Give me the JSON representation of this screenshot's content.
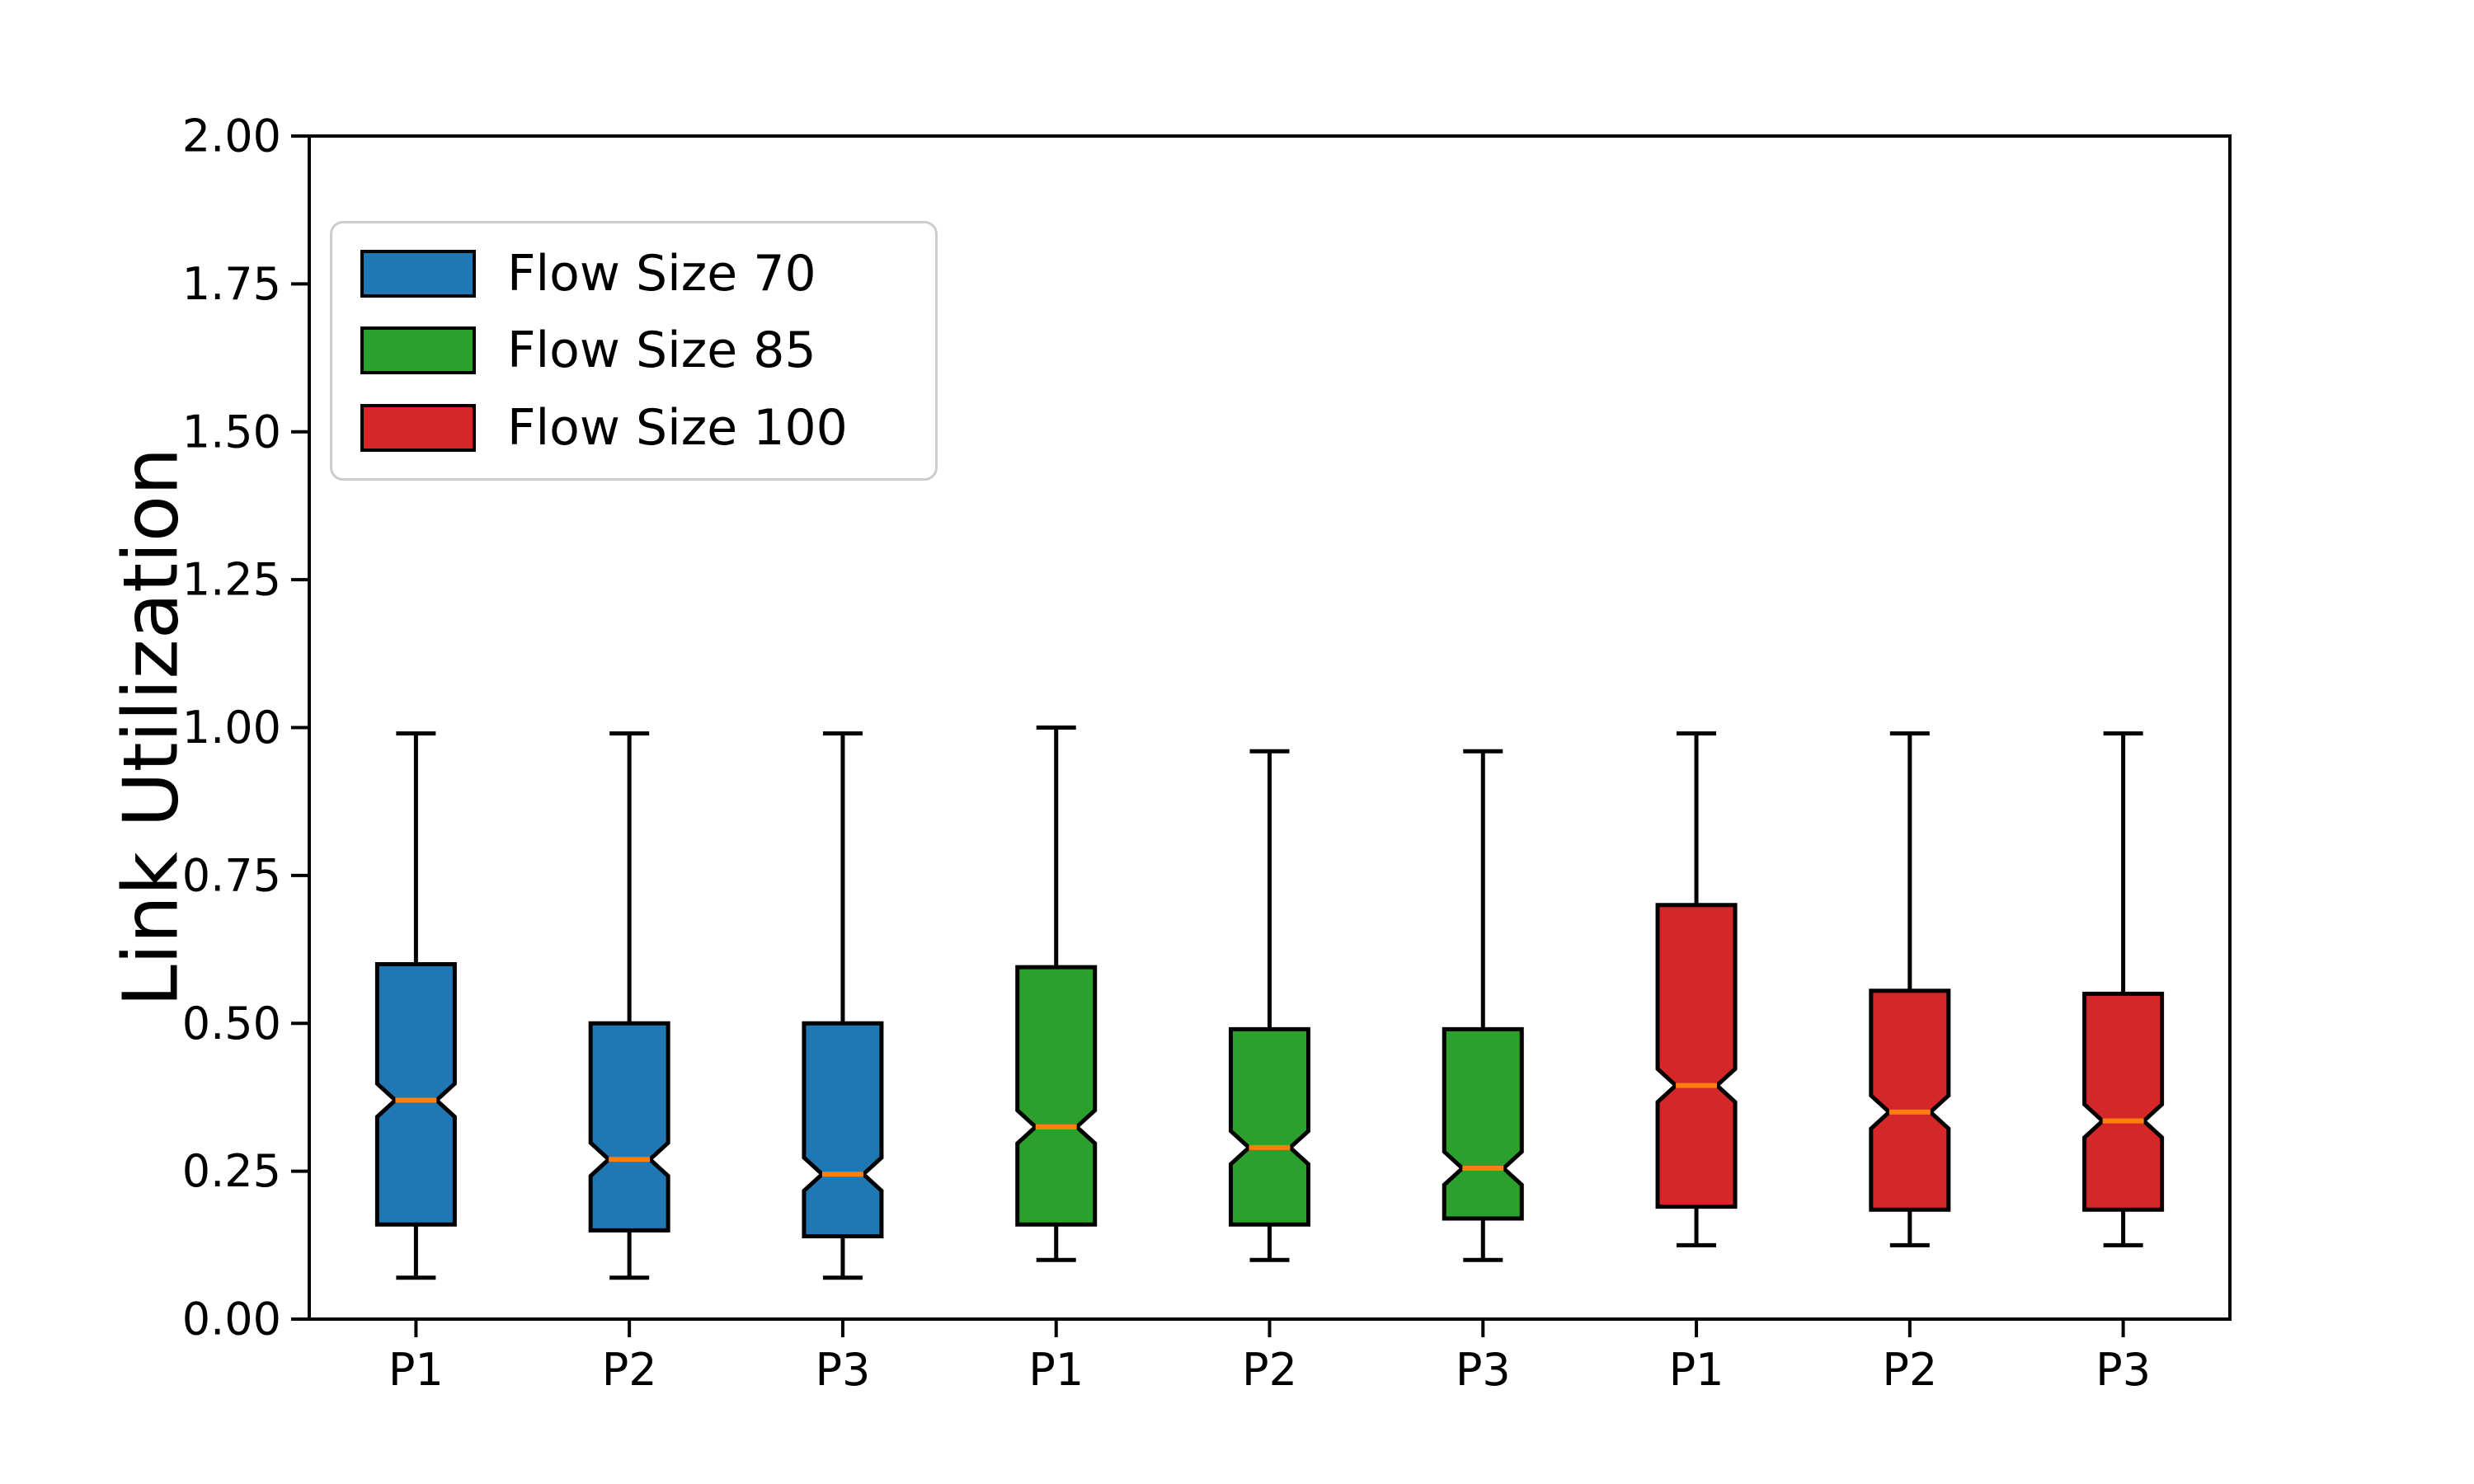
{
  "chart_data": {
    "type": "boxplot",
    "title": "",
    "xlabel": "",
    "ylabel": "Link Utilization",
    "ylim": [
      0,
      2
    ],
    "yticks": [
      "0.00",
      "0.25",
      "0.50",
      "0.75",
      "1.00",
      "1.25",
      "1.50",
      "1.75",
      "2.00"
    ],
    "ytick_values": [
      0,
      0.25,
      0.5,
      0.75,
      1.0,
      1.25,
      1.5,
      1.75,
      2.0
    ],
    "categories": [
      "P1",
      "P2",
      "P3",
      "P1",
      "P2",
      "P3",
      "P1",
      "P2",
      "P3"
    ],
    "grid": false,
    "frame": true,
    "notched": true,
    "notch_half": 0.028,
    "median_color": "#ff7f0e",
    "box_edge_color": "#000000",
    "legend_position": "upper left",
    "series": [
      {
        "name": "Flow Size 70",
        "color": "#1f77b4",
        "boxes": [
          {
            "label": "P1",
            "whislo": 0.07,
            "q1": 0.16,
            "med": 0.37,
            "q3": 0.6,
            "whishi": 0.99
          },
          {
            "label": "P2",
            "whislo": 0.07,
            "q1": 0.15,
            "med": 0.27,
            "q3": 0.5,
            "whishi": 0.99
          },
          {
            "label": "P3",
            "whislo": 0.07,
            "q1": 0.14,
            "med": 0.245,
            "q3": 0.5,
            "whishi": 0.99
          }
        ]
      },
      {
        "name": "Flow Size 85",
        "color": "#2ca02c",
        "boxes": [
          {
            "label": "P1",
            "whislo": 0.1,
            "q1": 0.16,
            "med": 0.325,
            "q3": 0.595,
            "whishi": 1.0
          },
          {
            "label": "P2",
            "whislo": 0.1,
            "q1": 0.16,
            "med": 0.29,
            "q3": 0.49,
            "whishi": 0.96
          },
          {
            "label": "P3",
            "whislo": 0.1,
            "q1": 0.17,
            "med": 0.255,
            "q3": 0.49,
            "whishi": 0.96
          }
        ]
      },
      {
        "name": "Flow Size 100",
        "color": "#d62728",
        "boxes": [
          {
            "label": "P1",
            "whislo": 0.125,
            "q1": 0.19,
            "med": 0.395,
            "q3": 0.7,
            "whishi": 0.99
          },
          {
            "label": "P2",
            "whislo": 0.125,
            "q1": 0.185,
            "med": 0.35,
            "q3": 0.555,
            "whishi": 0.99
          },
          {
            "label": "P3",
            "whislo": 0.125,
            "q1": 0.185,
            "med": 0.335,
            "q3": 0.55,
            "whishi": 0.99
          }
        ]
      }
    ]
  }
}
